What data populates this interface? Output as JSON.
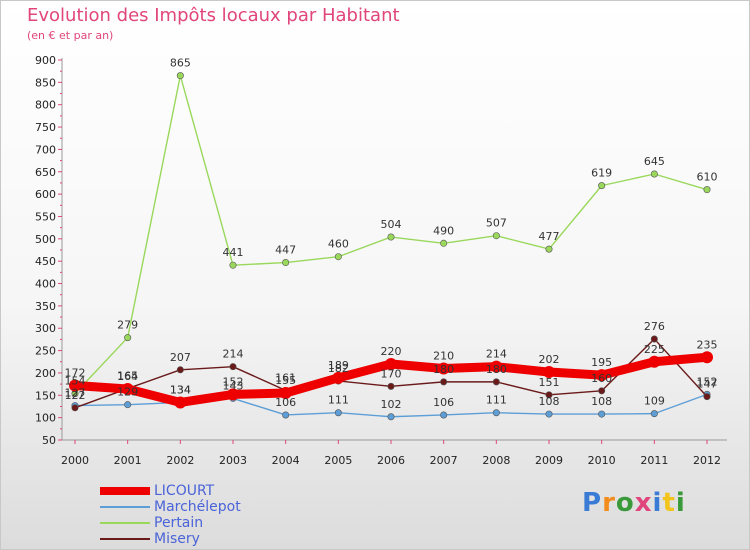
{
  "chart_data": {
    "type": "line",
    "title": "Evolution des Impôts locaux par Habitant",
    "subtitle": "(en € et par an)",
    "xlabel": "",
    "ylabel": "",
    "ylim": [
      50,
      900
    ],
    "yticks": [
      50,
      100,
      150,
      200,
      250,
      300,
      350,
      400,
      450,
      500,
      550,
      600,
      650,
      700,
      750,
      800,
      850,
      900
    ],
    "x": [
      "2000",
      "2001",
      "2002",
      "2003",
      "2004",
      "2005",
      "2006",
      "2007",
      "2008",
      "2009",
      "2010",
      "2011",
      "2012"
    ],
    "grid": false,
    "legend_position": "bottom-left",
    "series": [
      {
        "name": "LICOURT",
        "color": "#ee0000",
        "emphasis": true,
        "values": [
          172,
          164,
          134,
          152,
          155,
          189,
          220,
          210,
          214,
          202,
          195,
          225,
          235
        ],
        "labels": [
          "172",
          "164",
          "134",
          "152",
          "155",
          "189",
          "220",
          "210",
          "214",
          "202",
          "195",
          "225",
          "235"
        ]
      },
      {
        "name": "Marchélepot",
        "color": "#5e9ed6",
        "emphasis": false,
        "values": [
          127,
          129,
          134,
          143,
          106,
          111,
          102,
          106,
          111,
          108,
          108,
          109,
          152
        ],
        "labels": [
          "127",
          "129",
          "134",
          "143",
          "106",
          "111",
          "102",
          "106",
          "111",
          "108",
          "108",
          "109",
          "152"
        ]
      },
      {
        "name": "Pertain",
        "color": "#9ad85c",
        "emphasis": false,
        "values": [
          154,
          279,
          865,
          441,
          447,
          460,
          504,
          490,
          507,
          477,
          619,
          645,
          610
        ],
        "labels": [
          "154",
          "279",
          "865",
          "441",
          "447",
          "460",
          "504",
          "490",
          "507",
          "477",
          "619",
          "645",
          "610"
        ]
      },
      {
        "name": "Misery",
        "color": "#6b1a1a",
        "emphasis": false,
        "values": [
          122,
          165,
          207,
          214,
          161,
          182,
          170,
          180,
          180,
          151,
          160,
          276,
          147
        ],
        "labels": [
          "122",
          "165",
          "207",
          "214",
          "161",
          "182",
          "170",
          "180",
          "180",
          "151",
          "160",
          "276",
          "147"
        ]
      }
    ]
  },
  "brand": {
    "text": "Proxiti",
    "letter_colors": [
      "#3a7bd5",
      "#f28c1c",
      "#3a9a3a",
      "#e0457b",
      "#3a7bd5",
      "#f2c41c",
      "#3a9a3a"
    ]
  }
}
